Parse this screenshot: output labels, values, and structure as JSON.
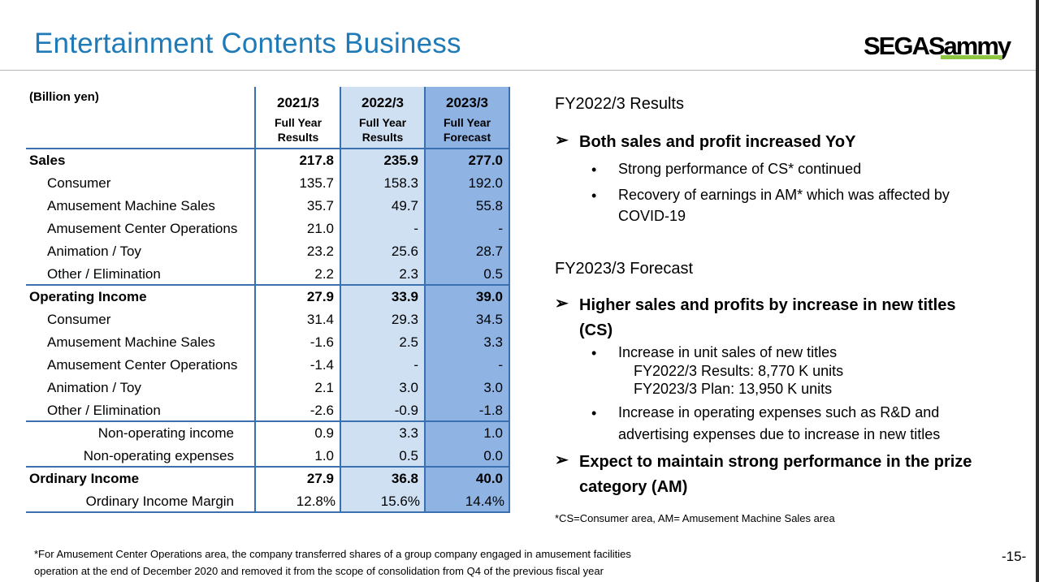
{
  "header": {
    "title": "Entertainment Contents Business",
    "logo_text": "SEGASammy",
    "accent_color": "#1f7ab8",
    "logo_bar_color": "#8dc63f"
  },
  "table": {
    "unit": "(Billion yen)",
    "columns": [
      {
        "year": "2021/3",
        "sub1": "Full Year",
        "sub2": "Results"
      },
      {
        "year": "2022/3",
        "sub1": "Full Year",
        "sub2": "Results"
      },
      {
        "year": "2023/3",
        "sub1": "Full Year",
        "sub2": "Forecast"
      }
    ],
    "rows": [
      {
        "label": "Sales",
        "values": [
          "217.8",
          "235.9",
          "277.0"
        ]
      },
      {
        "label": "Consumer",
        "values": [
          "135.7",
          "158.3",
          "192.0"
        ]
      },
      {
        "label": "Amusement Machine Sales",
        "values": [
          "35.7",
          "49.7",
          "55.8"
        ]
      },
      {
        "label": "Amusement Center Operations",
        "values": [
          "21.0",
          "-",
          "-"
        ]
      },
      {
        "label": "Animation / Toy",
        "values": [
          "23.2",
          "25.6",
          "28.7"
        ]
      },
      {
        "label": "Other / Elimination",
        "values": [
          "2.2",
          "2.3",
          "0.5"
        ]
      },
      {
        "label": "Operating Income",
        "values": [
          "27.9",
          "33.9",
          "39.0"
        ]
      },
      {
        "label": "Consumer",
        "values": [
          "31.4",
          "29.3",
          "34.5"
        ]
      },
      {
        "label": "Amusement Machine Sales",
        "values": [
          "-1.6",
          "2.5",
          "3.3"
        ]
      },
      {
        "label": "Amusement Center Operations",
        "values": [
          "-1.4",
          "-",
          "-"
        ]
      },
      {
        "label": "Animation / Toy",
        "values": [
          "2.1",
          "3.0",
          "3.0"
        ]
      },
      {
        "label": "Other / Elimination",
        "values": [
          "-2.6",
          "-0.9",
          "-1.8"
        ]
      },
      {
        "label": "Non-operating income",
        "values": [
          "0.9",
          "3.3",
          "1.0"
        ]
      },
      {
        "label": "Non-operating expenses",
        "values": [
          "1.0",
          "0.5",
          "0.0"
        ]
      },
      {
        "label": "Ordinary Income",
        "values": [
          "27.9",
          "36.8",
          "40.0"
        ]
      },
      {
        "label": "Ordinary Income Margin",
        "values": [
          "12.8%",
          "15.6%",
          "14.4%"
        ]
      }
    ],
    "col_colors": [
      "#ffffff",
      "#cfe0f3",
      "#8fb3e3"
    ]
  },
  "right": {
    "section1_title": "FY2022/3 Results",
    "bullet1": "Both sales and profit increased YoY",
    "b1_dot1": "Strong performance of CS* continued",
    "b1_dot2_line1": "Recovery of earnings in AM* which was affected by",
    "b1_dot2_line2": "COVID-19",
    "section2_title": "FY2023/3 Forecast",
    "bullet2_line1": "Higher sales and profits by increase in new titles",
    "bullet2_line2": "(CS)",
    "b2_dot1": "Increase in unit sales of new titles",
    "b2_sub1": "FY2022/3 Results: 8,770 K units",
    "b2_sub2": "FY2023/3 Plan: 13,950 K units",
    "b2_dot2_line1": "Increase in operating expenses such as R&D and",
    "b2_dot2_line2": "advertising expenses due to increase in new titles",
    "bullet3_line1": "Expect to maintain strong performance in the prize",
    "bullet3_line2": "category (AM)",
    "note": "*CS=Consumer area, AM= Amusement Machine Sales area",
    "arrow_glyph": "➢",
    "dot_glyph": "•"
  },
  "footer": {
    "line1": "*For Amusement Center Operations area, the company transferred shares of a group company engaged in amusement facilities",
    "line2": "operation at the end of December 2020 and removed it from the scope of consolidation from Q4 of the previous fiscal year",
    "page": "-15-"
  }
}
